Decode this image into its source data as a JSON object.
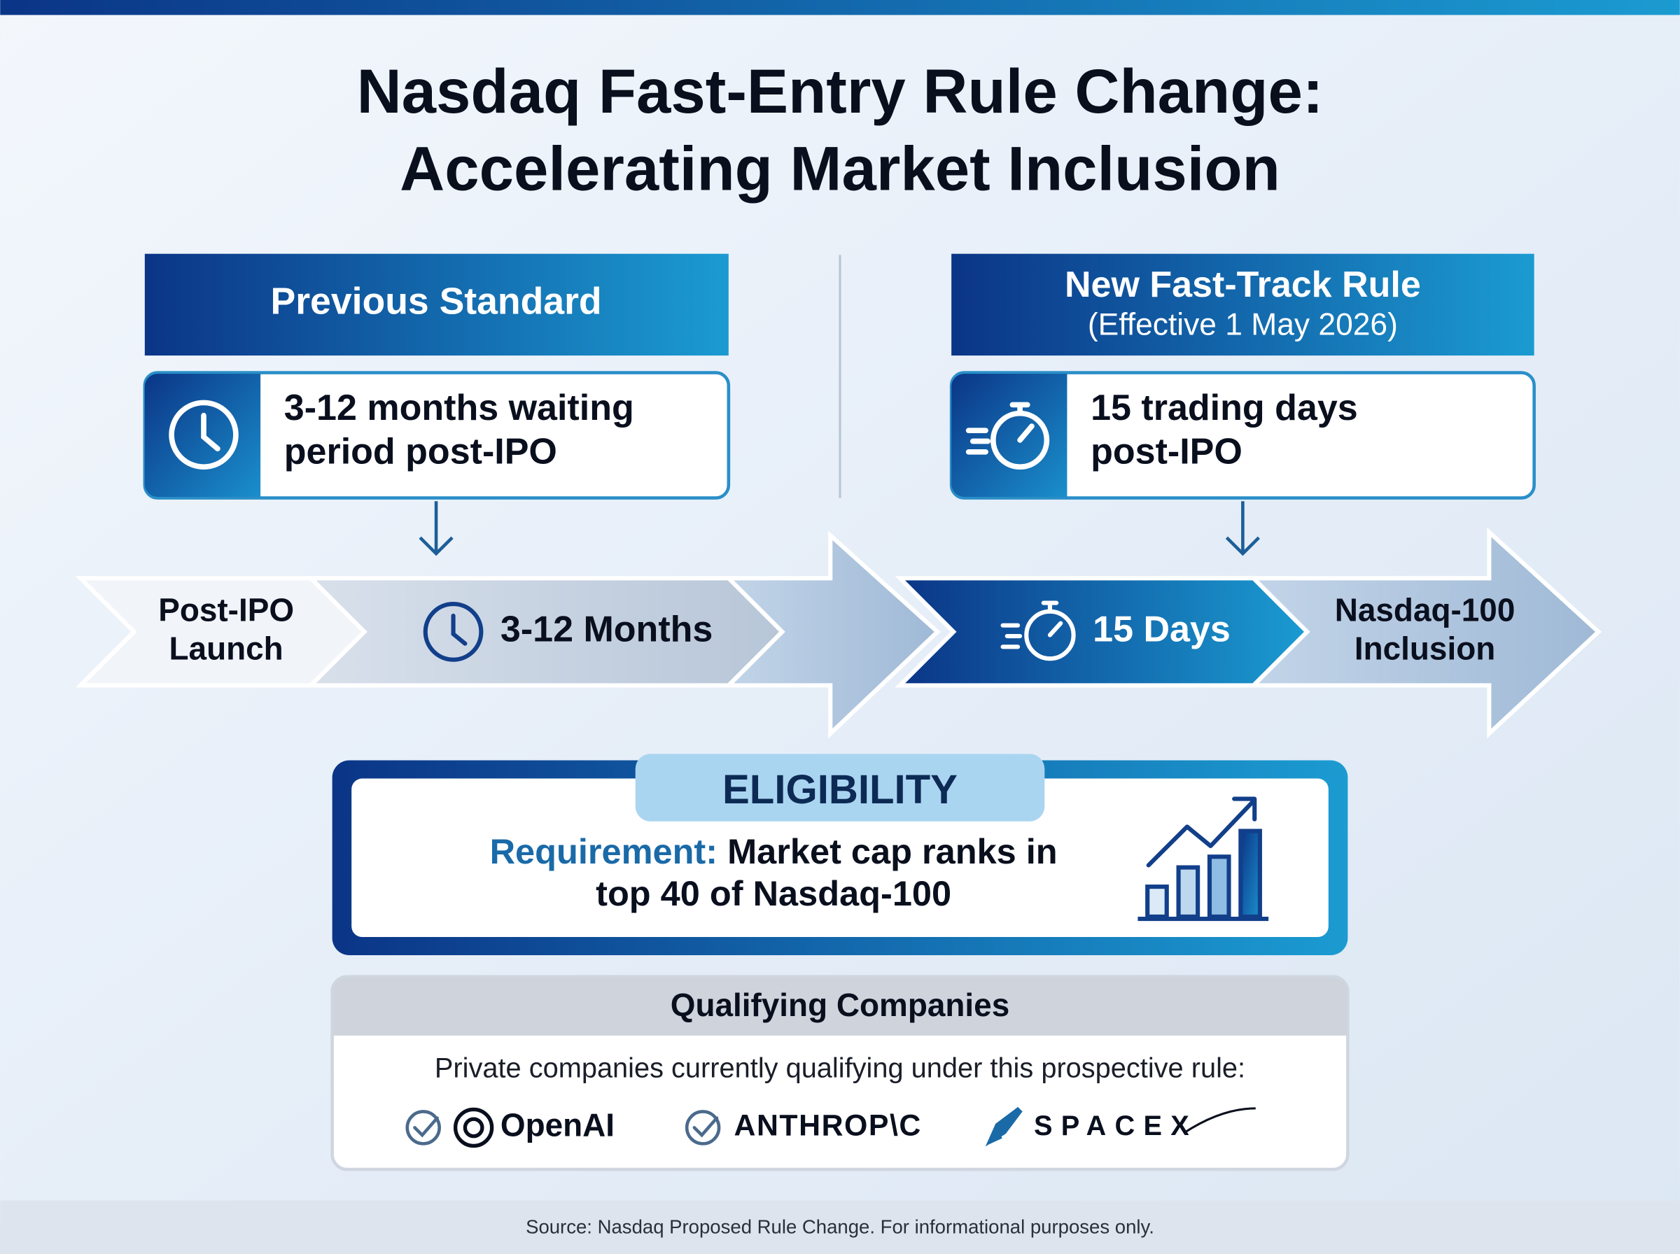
{
  "header": {
    "title_lines": [
      "Nasdaq Fast-Entry Rule Change:",
      "Accelerating Market Inclusion"
    ]
  },
  "previous": {
    "heading": "Previous Standard",
    "text_lines": [
      "3-12 months waiting",
      "period post-IPO"
    ]
  },
  "new_rule": {
    "heading": "New Fast-Track Rule",
    "subheading": "(Effective 1 May 2026)",
    "text_lines": [
      "15 trading days",
      "post-IPO"
    ]
  },
  "timeline": {
    "start_lines": [
      "Post-IPO",
      "Launch"
    ],
    "previous_period": "3-12 Months",
    "new_period": "15 Days",
    "end_lines": [
      "Nasdaq-100",
      "Inclusion"
    ]
  },
  "eligibility": {
    "heading": "ELIGIBILITY",
    "requirement_label": "Requirement:",
    "requirement_lines": [
      "Market cap ranks in",
      "top 40 of Nasdaq-100"
    ]
  },
  "qualifying": {
    "heading": "Qualifying Companies",
    "intro": "Private companies currently qualifying under this prospective rule:",
    "companies": [
      "OpenAI",
      "ANTHROP\\C",
      "SPACEX"
    ]
  },
  "footer": {
    "source": "Source: Nasdaq Proposed Rule Change. For informational purposes only."
  }
}
